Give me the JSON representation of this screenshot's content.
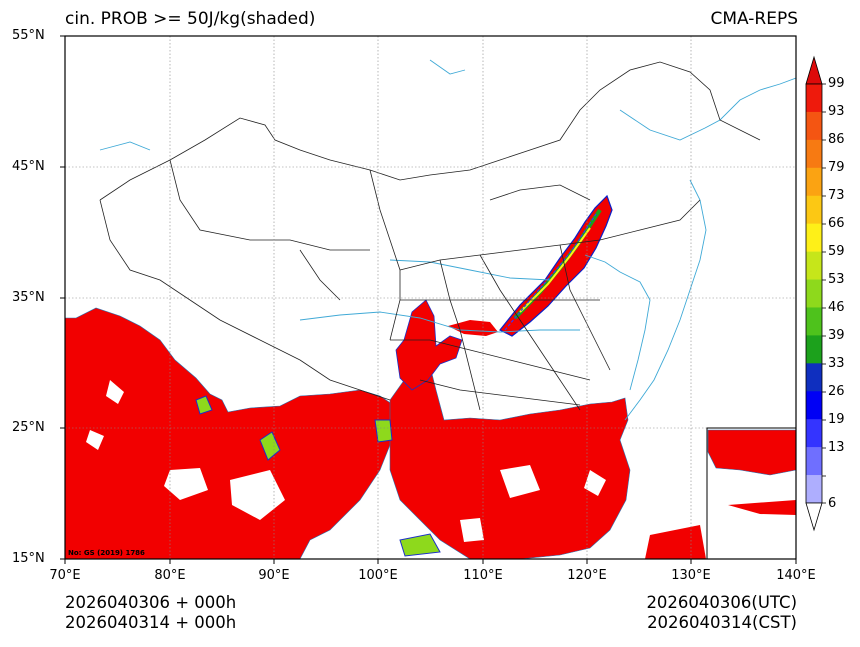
{
  "header": {
    "title_left": "cin. PROB >= 50J/kg(shaded)",
    "title_right": "CMA-REPS"
  },
  "map": {
    "lat_labels": [
      "55°N",
      "45°N",
      "35°N",
      "25°N",
      "15°N"
    ],
    "lon_labels": [
      "70°E",
      "80°E",
      "90°E",
      "100°E",
      "110°E",
      "120°E",
      "130°E",
      "140°E"
    ],
    "lat_range": [
      15,
      55
    ],
    "lon_range": [
      70,
      140
    ],
    "review_no": "No: GS (2019) 1786",
    "field_color": "#f20000",
    "coast_color": "#3fa9d6",
    "border_color": "#222222"
  },
  "colorbar": {
    "labels": [
      "99",
      "93",
      "86",
      "79",
      "73",
      "66",
      "59",
      "53",
      "46",
      "39",
      "33",
      "26",
      "19",
      "13",
      "6"
    ],
    "colors": [
      "#ee1a0c",
      "#f45512",
      "#f77a12",
      "#fba312",
      "#fcc814",
      "#fef018",
      "#c6e61a",
      "#8ed91c",
      "#4ec21c",
      "#1ca11c",
      "#0f2fbf",
      "#0000f5",
      "#3434ff",
      "#6f6fff",
      "#aeaefe"
    ],
    "top_arrow_color": "#dd0a0a",
    "bottom_arrow_color": "#ffffff"
  },
  "footer": {
    "left_line1": "2026040306  +  000h",
    "left_line2": "2026040314  +  000h",
    "right_line1": "2026040306(UTC)",
    "right_line2": "2026040314(CST)"
  }
}
